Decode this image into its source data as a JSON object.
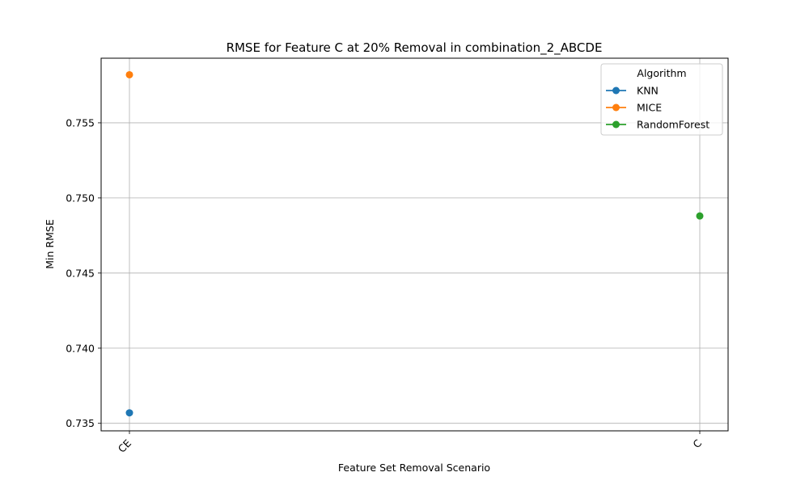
{
  "chart_data": {
    "type": "scatter",
    "title": "RMSE for Feature C at 20% Removal in combination_2_ABCDE",
    "xlabel": "Feature Set Removal Scenario",
    "ylabel": "Min RMSE",
    "categories": [
      "CE",
      "C"
    ],
    "ylim": [
      0.7345,
      0.7593
    ],
    "yticks": [
      "0.735",
      "0.740",
      "0.745",
      "0.750",
      "0.755"
    ],
    "grid": true,
    "legend": {
      "title": "Algorithm",
      "position": "top-right"
    },
    "series": [
      {
        "name": "KNN",
        "color": "#1f77b4",
        "points": [
          {
            "x": "CE",
            "y": 0.7357
          }
        ]
      },
      {
        "name": "MICE",
        "color": "#ff7f0e",
        "points": [
          {
            "x": "CE",
            "y": 0.7582
          }
        ]
      },
      {
        "name": "RandomForest",
        "color": "#2ca02c",
        "points": [
          {
            "x": "C",
            "y": 0.7488
          }
        ]
      }
    ]
  }
}
